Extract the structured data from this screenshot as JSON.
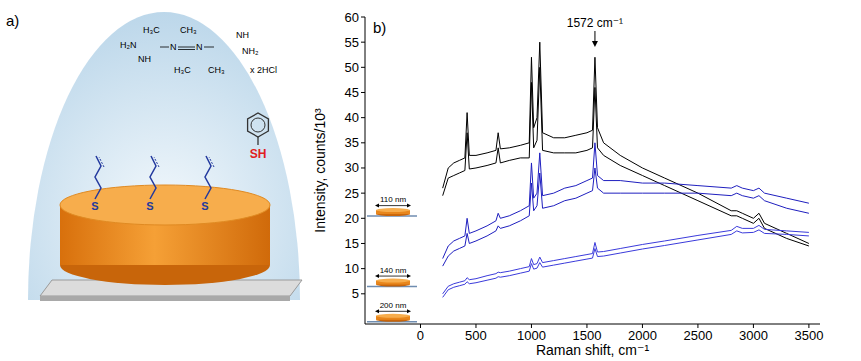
{
  "diagram": {
    "label": "a)",
    "formula": [
      "H₃C",
      "CH₃",
      "H₂N",
      "NH",
      "N",
      "N",
      "NH",
      "NH₂",
      "H₃C",
      "CH₃"
    ],
    "salt": "x 2HCl",
    "anchor_atoms": [
      "S",
      "S",
      "S"
    ],
    "thiol": "SH"
  },
  "chart_data": {
    "label": "b)",
    "type": "line",
    "x_label": "Raman shift, cm⁻¹",
    "y_label": "Intensity, counts/10³",
    "xlim": [
      -500,
      3600
    ],
    "ylim": [
      -1,
      60
    ],
    "xticks": [
      0,
      500,
      1000,
      1500,
      2000,
      2500,
      3000,
      3500
    ],
    "yticks": [
      5,
      10,
      15,
      20,
      25,
      30,
      35,
      40,
      45,
      50,
      55,
      60
    ],
    "grid": false,
    "annotations": [
      {
        "text": "1572 cm⁻¹",
        "x": 1572
      }
    ],
    "x": [
      200,
      250,
      300,
      350,
      400,
      420,
      440,
      500,
      600,
      680,
      700,
      720,
      800,
      900,
      980,
      1000,
      1020,
      1050,
      1075,
      1100,
      1200,
      1300,
      1400,
      1500,
      1550,
      1572,
      1595,
      1650,
      1800,
      2000,
      2200,
      2500,
      2800,
      2850,
      2900,
      3000,
      3050,
      3100,
      3300,
      3500
    ],
    "series": [
      {
        "name": "110 nm",
        "color": "#000000",
        "values": [
          26,
          30,
          31,
          31.5,
          32,
          41,
          32.5,
          32.5,
          33,
          33.5,
          37,
          33.8,
          34,
          34.5,
          35,
          52,
          38,
          40,
          55,
          37,
          36,
          36,
          36.5,
          37,
          37.5,
          52,
          38,
          35,
          32.5,
          30,
          28,
          25,
          21.5,
          21.5,
          21,
          20,
          21,
          19,
          17,
          15
        ]
      },
      {
        "name": "110 nm",
        "color": "#000000",
        "values": [
          24.5,
          28,
          28.5,
          29,
          29.5,
          37,
          29.8,
          30,
          30.5,
          31,
          34,
          31,
          31.5,
          32,
          32,
          47,
          34,
          35.5,
          50,
          33.5,
          33,
          33,
          33,
          33.5,
          34,
          46,
          34,
          32.5,
          30.5,
          28.5,
          26.5,
          23.5,
          20.5,
          20.5,
          20,
          19,
          20,
          18,
          16,
          14.5
        ]
      },
      {
        "name": "140 nm",
        "color": "#1f1fbf",
        "values": [
          12,
          14.5,
          15.5,
          16,
          16.5,
          20,
          17,
          17.5,
          18.5,
          19.5,
          21,
          20,
          20.5,
          21.5,
          22.5,
          31,
          24,
          25,
          33,
          24.5,
          25,
          26,
          26.5,
          27.5,
          28,
          35,
          28.5,
          27.5,
          27.5,
          27,
          27,
          26.5,
          26,
          26.5,
          26,
          25.5,
          26,
          25,
          24,
          23
        ]
      },
      {
        "name": "140 nm",
        "color": "#1f1fbf",
        "values": [
          10.5,
          12.5,
          13.5,
          14,
          14.5,
          17,
          15,
          15.5,
          16.5,
          17.5,
          18.5,
          18,
          18.5,
          19.5,
          20.5,
          27,
          21.5,
          22.5,
          29,
          22,
          22.5,
          23.5,
          24,
          25,
          25.5,
          30,
          26,
          25,
          25,
          25,
          25,
          25,
          24.5,
          25,
          24.5,
          24,
          24.5,
          23.5,
          22,
          21
        ]
      },
      {
        "name": "200 nm",
        "color": "#3b3bdb",
        "values": [
          5,
          6.5,
          7,
          7.3,
          7.6,
          8.2,
          7.8,
          8,
          8.6,
          9,
          9.3,
          9.2,
          9.5,
          10,
          10.4,
          12,
          10.8,
          11,
          12.3,
          11.2,
          11.6,
          12,
          12.4,
          12.8,
          13,
          15.2,
          13.3,
          13.4,
          14,
          14.8,
          15.5,
          16.6,
          17.6,
          18.4,
          18,
          18,
          18.6,
          17.8,
          17.5,
          17.2
        ]
      },
      {
        "name": "200 nm",
        "color": "#3b3bdb",
        "values": [
          4.3,
          5.8,
          6.3,
          6.6,
          6.9,
          7.4,
          7,
          7.2,
          7.7,
          8.1,
          8.4,
          8.3,
          8.6,
          9.1,
          9.5,
          11,
          9.9,
          10.1,
          11.2,
          10.3,
          10.7,
          11.1,
          11.5,
          11.9,
          12.1,
          14,
          12.4,
          12.5,
          13.1,
          13.9,
          14.6,
          15.7,
          16.8,
          17.5,
          17.1,
          17.2,
          17.7,
          17,
          16.8,
          16.5
        ]
      }
    ]
  }
}
